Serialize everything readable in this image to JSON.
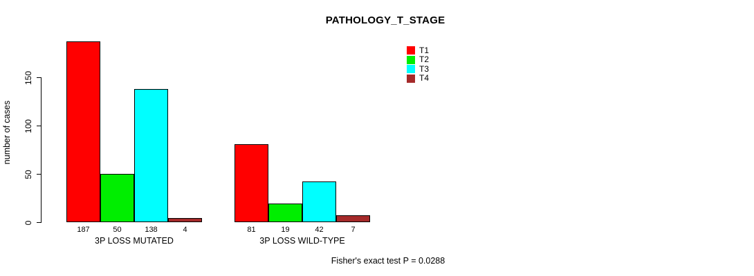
{
  "chart_data": {
    "type": "bar",
    "title": "PATHOLOGY_T_STAGE",
    "ylabel": "number of cases",
    "xlabel": "",
    "yticks": [
      0,
      50,
      100,
      150
    ],
    "ylim": [
      0,
      190
    ],
    "grid": false,
    "bar_value_labels_shown": true,
    "categories": [
      "3P LOSS MUTATED",
      "3P LOSS WILD-TYPE"
    ],
    "series": [
      {
        "name": "T1",
        "color": "#FF0000",
        "values": [
          187,
          81
        ]
      },
      {
        "name": "T2",
        "color": "#00EE00",
        "values": [
          50,
          19
        ]
      },
      {
        "name": "T3",
        "color": "#00FFFF",
        "values": [
          138,
          42
        ]
      },
      {
        "name": "T4",
        "color": "#A52A2A",
        "values": [
          4,
          7
        ]
      }
    ],
    "legend": {
      "position": "top-right",
      "entries": [
        "T1",
        "T2",
        "T3",
        "T4"
      ]
    },
    "annotation": "Fisher's exact test P = 0.0288"
  }
}
